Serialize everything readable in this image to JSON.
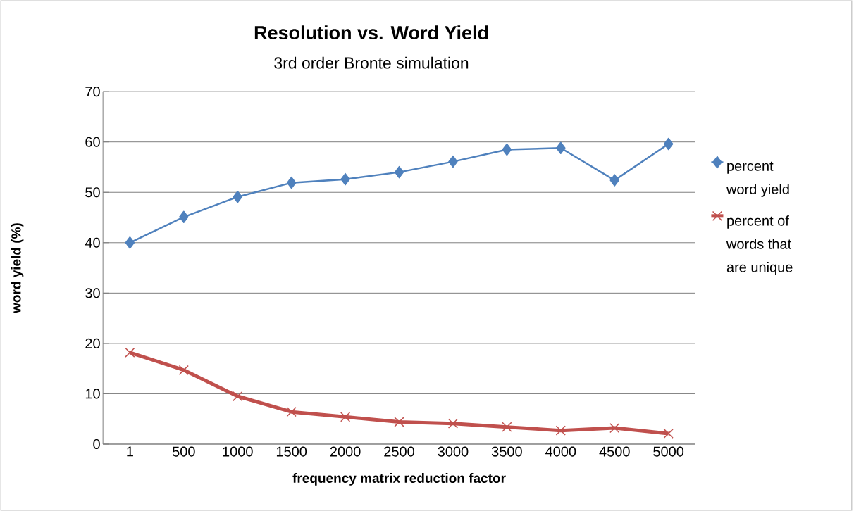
{
  "chart_data": {
    "type": "line",
    "title": "Resolution vs. Word Yield",
    "subtitle": "3rd order Bronte simulation",
    "xlabel": "frequency matrix reduction factor",
    "ylabel": "word yield (%)",
    "categories": [
      "1",
      "500",
      "1000",
      "1500",
      "2000",
      "2500",
      "3000",
      "3500",
      "4000",
      "4500",
      "5000"
    ],
    "series": [
      {
        "name": "percent word yield",
        "color": "#4f81bd",
        "marker": "diamond",
        "values": [
          40.0,
          45.1,
          49.1,
          51.9,
          52.6,
          54.0,
          56.1,
          58.5,
          58.8,
          52.4,
          59.6
        ]
      },
      {
        "name": "percent of words that are unique",
        "color": "#c0504d",
        "marker": "cross",
        "values": [
          18.2,
          14.7,
          9.5,
          6.4,
          5.4,
          4.4,
          4.1,
          3.4,
          2.7,
          3.2,
          2.1
        ]
      }
    ],
    "ylim": [
      0,
      70
    ],
    "yticks": [
      0,
      10,
      20,
      30,
      40,
      50,
      60,
      70
    ],
    "grid": "y",
    "legend": "right",
    "line_style": "solid"
  }
}
